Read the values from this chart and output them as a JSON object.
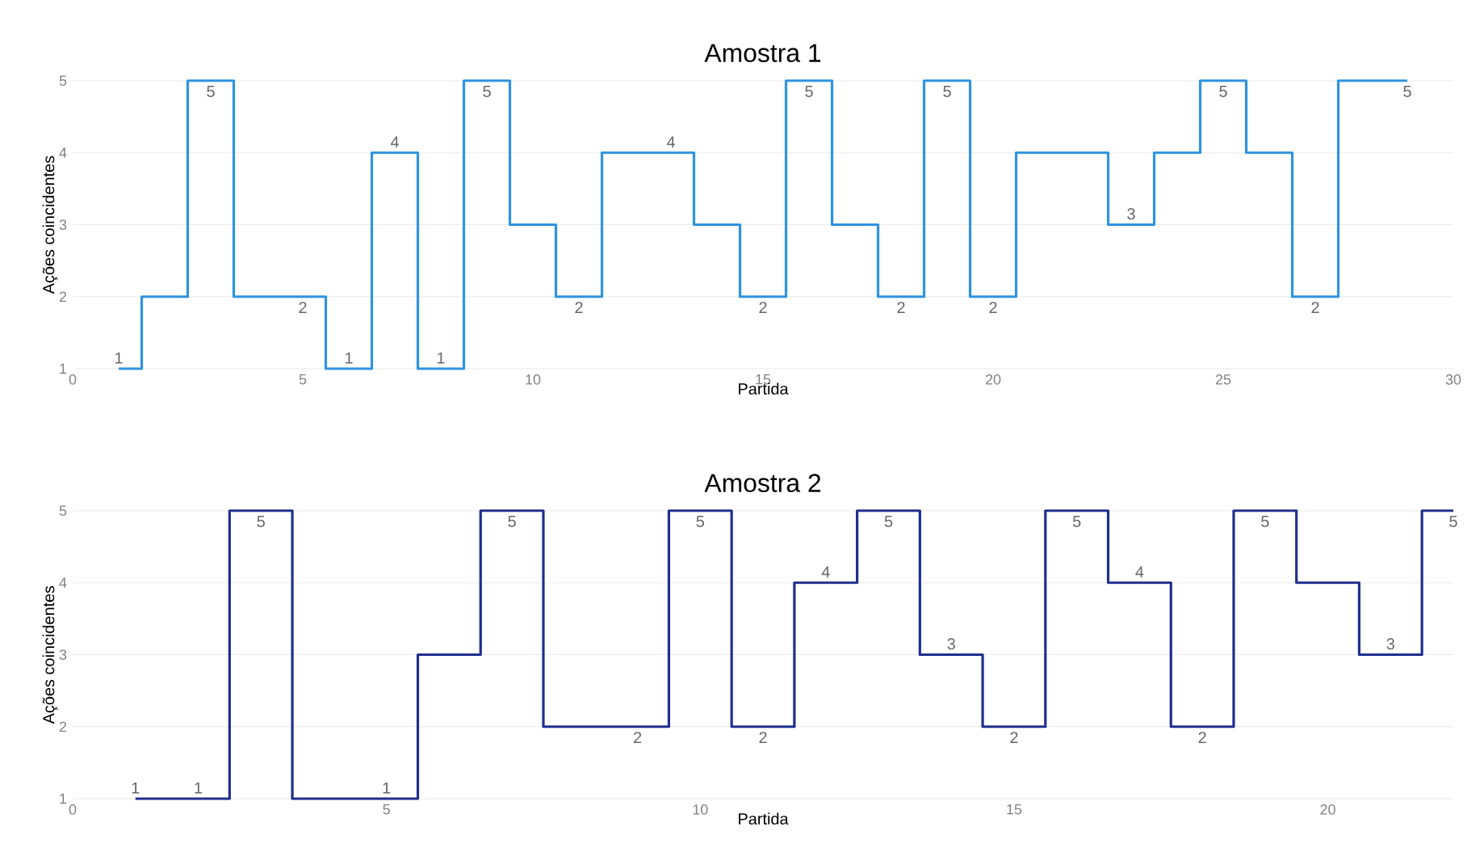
{
  "chart_data": [
    {
      "type": "step",
      "title": "Amostra 1",
      "xlabel": "Partida",
      "ylabel": "Ações coincidentes",
      "color": "#2e93e0",
      "x": [
        1,
        2,
        3,
        4,
        5,
        6,
        7,
        8,
        9,
        10,
        11,
        12,
        13,
        14,
        15,
        16,
        17,
        18,
        19,
        20,
        21,
        22,
        23,
        24,
        25,
        26,
        27,
        28,
        29
      ],
      "values": [
        1,
        2,
        5,
        2,
        2,
        1,
        4,
        1,
        5,
        3,
        2,
        4,
        4,
        3,
        2,
        5,
        3,
        2,
        5,
        2,
        4,
        4,
        3,
        4,
        5,
        4,
        2,
        5,
        5
      ],
      "value_labels": [
        "1",
        null,
        "5",
        null,
        "2",
        "1",
        "4",
        "1",
        "5",
        null,
        "2",
        null,
        "4",
        null,
        "2",
        "5",
        null,
        "2",
        "5",
        "2",
        null,
        null,
        "3",
        null,
        "5",
        null,
        "2",
        null,
        "5"
      ],
      "xlim": [
        0,
        30
      ],
      "xticks": [
        0,
        5,
        10,
        15,
        20,
        25,
        30
      ],
      "ylim": [
        1,
        5
      ],
      "yticks": [
        1,
        2,
        3,
        4,
        5
      ],
      "grid": "y"
    },
    {
      "type": "step",
      "title": "Amostra 2",
      "xlabel": "Partida",
      "ylabel": "Ações coincidentes",
      "color": "#1f2f8e",
      "x": [
        1,
        2,
        3,
        4,
        5,
        6,
        7,
        8,
        9,
        10,
        11,
        12,
        13,
        14,
        15,
        16,
        17,
        18,
        19,
        20,
        21,
        22
      ],
      "values": [
        1,
        1,
        5,
        1,
        1,
        3,
        5,
        2,
        2,
        5,
        2,
        4,
        5,
        3,
        2,
        5,
        4,
        2,
        5,
        4,
        3,
        5
      ],
      "value_labels": [
        "1",
        "1",
        "5",
        null,
        "1",
        null,
        "5",
        null,
        "2",
        "5",
        "2",
        "4",
        "5",
        "3",
        "2",
        "5",
        "4",
        "2",
        "5",
        null,
        "3",
        "5"
      ],
      "xlim": [
        0,
        22
      ],
      "xticks": [
        0,
        5,
        10,
        15,
        20
      ],
      "ylim": [
        1,
        5
      ],
      "yticks": [
        1,
        2,
        3,
        4,
        5
      ],
      "grid": "y"
    }
  ]
}
